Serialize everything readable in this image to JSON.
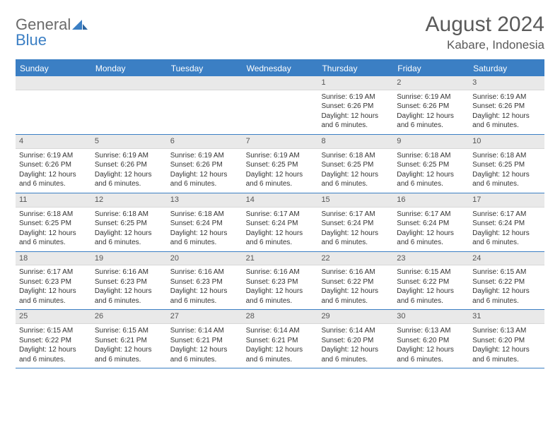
{
  "brand": {
    "name_a": "General",
    "name_b": "Blue"
  },
  "title": "August 2024",
  "location": "Kabare, Indonesia",
  "colors": {
    "accent": "#3b7fc4",
    "header_text": "#5a5a5a",
    "day_bg": "#e9e9e9",
    "text": "#333333"
  },
  "days_of_week": [
    "Sunday",
    "Monday",
    "Tuesday",
    "Wednesday",
    "Thursday",
    "Friday",
    "Saturday"
  ],
  "weeks": [
    [
      {
        "n": "",
        "lines": []
      },
      {
        "n": "",
        "lines": []
      },
      {
        "n": "",
        "lines": []
      },
      {
        "n": "",
        "lines": []
      },
      {
        "n": "1",
        "lines": [
          "Sunrise: 6:19 AM",
          "Sunset: 6:26 PM",
          "Daylight: 12 hours and 6 minutes."
        ]
      },
      {
        "n": "2",
        "lines": [
          "Sunrise: 6:19 AM",
          "Sunset: 6:26 PM",
          "Daylight: 12 hours and 6 minutes."
        ]
      },
      {
        "n": "3",
        "lines": [
          "Sunrise: 6:19 AM",
          "Sunset: 6:26 PM",
          "Daylight: 12 hours and 6 minutes."
        ]
      }
    ],
    [
      {
        "n": "4",
        "lines": [
          "Sunrise: 6:19 AM",
          "Sunset: 6:26 PM",
          "Daylight: 12 hours and 6 minutes."
        ]
      },
      {
        "n": "5",
        "lines": [
          "Sunrise: 6:19 AM",
          "Sunset: 6:26 PM",
          "Daylight: 12 hours and 6 minutes."
        ]
      },
      {
        "n": "6",
        "lines": [
          "Sunrise: 6:19 AM",
          "Sunset: 6:26 PM",
          "Daylight: 12 hours and 6 minutes."
        ]
      },
      {
        "n": "7",
        "lines": [
          "Sunrise: 6:19 AM",
          "Sunset: 6:25 PM",
          "Daylight: 12 hours and 6 minutes."
        ]
      },
      {
        "n": "8",
        "lines": [
          "Sunrise: 6:18 AM",
          "Sunset: 6:25 PM",
          "Daylight: 12 hours and 6 minutes."
        ]
      },
      {
        "n": "9",
        "lines": [
          "Sunrise: 6:18 AM",
          "Sunset: 6:25 PM",
          "Daylight: 12 hours and 6 minutes."
        ]
      },
      {
        "n": "10",
        "lines": [
          "Sunrise: 6:18 AM",
          "Sunset: 6:25 PM",
          "Daylight: 12 hours and 6 minutes."
        ]
      }
    ],
    [
      {
        "n": "11",
        "lines": [
          "Sunrise: 6:18 AM",
          "Sunset: 6:25 PM",
          "Daylight: 12 hours and 6 minutes."
        ]
      },
      {
        "n": "12",
        "lines": [
          "Sunrise: 6:18 AM",
          "Sunset: 6:25 PM",
          "Daylight: 12 hours and 6 minutes."
        ]
      },
      {
        "n": "13",
        "lines": [
          "Sunrise: 6:18 AM",
          "Sunset: 6:24 PM",
          "Daylight: 12 hours and 6 minutes."
        ]
      },
      {
        "n": "14",
        "lines": [
          "Sunrise: 6:17 AM",
          "Sunset: 6:24 PM",
          "Daylight: 12 hours and 6 minutes."
        ]
      },
      {
        "n": "15",
        "lines": [
          "Sunrise: 6:17 AM",
          "Sunset: 6:24 PM",
          "Daylight: 12 hours and 6 minutes."
        ]
      },
      {
        "n": "16",
        "lines": [
          "Sunrise: 6:17 AM",
          "Sunset: 6:24 PM",
          "Daylight: 12 hours and 6 minutes."
        ]
      },
      {
        "n": "17",
        "lines": [
          "Sunrise: 6:17 AM",
          "Sunset: 6:24 PM",
          "Daylight: 12 hours and 6 minutes."
        ]
      }
    ],
    [
      {
        "n": "18",
        "lines": [
          "Sunrise: 6:17 AM",
          "Sunset: 6:23 PM",
          "Daylight: 12 hours and 6 minutes."
        ]
      },
      {
        "n": "19",
        "lines": [
          "Sunrise: 6:16 AM",
          "Sunset: 6:23 PM",
          "Daylight: 12 hours and 6 minutes."
        ]
      },
      {
        "n": "20",
        "lines": [
          "Sunrise: 6:16 AM",
          "Sunset: 6:23 PM",
          "Daylight: 12 hours and 6 minutes."
        ]
      },
      {
        "n": "21",
        "lines": [
          "Sunrise: 6:16 AM",
          "Sunset: 6:23 PM",
          "Daylight: 12 hours and 6 minutes."
        ]
      },
      {
        "n": "22",
        "lines": [
          "Sunrise: 6:16 AM",
          "Sunset: 6:22 PM",
          "Daylight: 12 hours and 6 minutes."
        ]
      },
      {
        "n": "23",
        "lines": [
          "Sunrise: 6:15 AM",
          "Sunset: 6:22 PM",
          "Daylight: 12 hours and 6 minutes."
        ]
      },
      {
        "n": "24",
        "lines": [
          "Sunrise: 6:15 AM",
          "Sunset: 6:22 PM",
          "Daylight: 12 hours and 6 minutes."
        ]
      }
    ],
    [
      {
        "n": "25",
        "lines": [
          "Sunrise: 6:15 AM",
          "Sunset: 6:22 PM",
          "Daylight: 12 hours and 6 minutes."
        ]
      },
      {
        "n": "26",
        "lines": [
          "Sunrise: 6:15 AM",
          "Sunset: 6:21 PM",
          "Daylight: 12 hours and 6 minutes."
        ]
      },
      {
        "n": "27",
        "lines": [
          "Sunrise: 6:14 AM",
          "Sunset: 6:21 PM",
          "Daylight: 12 hours and 6 minutes."
        ]
      },
      {
        "n": "28",
        "lines": [
          "Sunrise: 6:14 AM",
          "Sunset: 6:21 PM",
          "Daylight: 12 hours and 6 minutes."
        ]
      },
      {
        "n": "29",
        "lines": [
          "Sunrise: 6:14 AM",
          "Sunset: 6:20 PM",
          "Daylight: 12 hours and 6 minutes."
        ]
      },
      {
        "n": "30",
        "lines": [
          "Sunrise: 6:13 AM",
          "Sunset: 6:20 PM",
          "Daylight: 12 hours and 6 minutes."
        ]
      },
      {
        "n": "31",
        "lines": [
          "Sunrise: 6:13 AM",
          "Sunset: 6:20 PM",
          "Daylight: 12 hours and 6 minutes."
        ]
      }
    ]
  ]
}
